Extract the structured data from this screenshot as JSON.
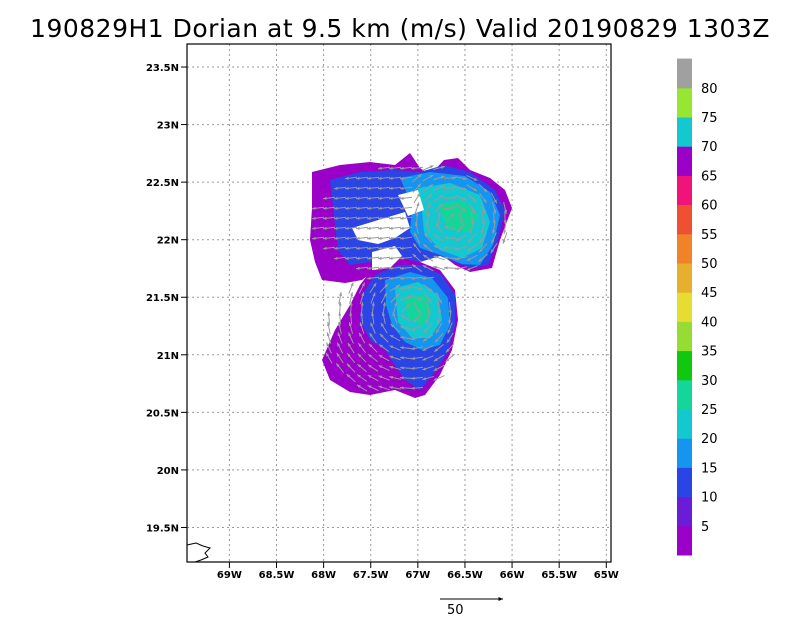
{
  "chart_data": {
    "type": "heatmap",
    "title": "190829H1 Dorian at 9.5 km (m/s) Valid 20190829 1303Z",
    "x_axis": {
      "range": [
        -69.45,
        -64.95
      ],
      "ticks": [
        -69,
        -68.5,
        -68,
        -67.5,
        -67,
        -66.5,
        -66,
        -65.5,
        -65
      ],
      "tick_labels": [
        "69W",
        "68.5W",
        "68W",
        "67.5W",
        "67W",
        "66.5W",
        "66W",
        "65.5W",
        "65W"
      ]
    },
    "y_axis": {
      "range": [
        19.2,
        23.7
      ],
      "ticks": [
        19.5,
        20,
        20.5,
        21,
        21.5,
        22,
        22.5,
        23,
        23.5
      ],
      "tick_labels": [
        "19.5N",
        "20N",
        "20.5N",
        "21N",
        "21.5N",
        "22N",
        "22.5N",
        "23N",
        "23.5N"
      ]
    },
    "grid": true,
    "colorbar": {
      "labels": [
        "5",
        "10",
        "15",
        "20",
        "25",
        "30",
        "35",
        "40",
        "45",
        "50",
        "55",
        "60",
        "65",
        "70",
        "75",
        "80"
      ],
      "colors": [
        "#9a00c8",
        "#6a1cd8",
        "#2a44e6",
        "#1496f0",
        "#14c8d0",
        "#14d69a",
        "#0fc80f",
        "#96dc32",
        "#e6dc32",
        "#e6af2d",
        "#f08228",
        "#f05032",
        "#f0147a",
        "#9a00c8",
        "#14c8d0",
        "#96e632",
        "#a0a0a0"
      ]
    },
    "reference_vector": {
      "label": "50"
    },
    "regions": [
      {
        "lon": -67.6,
        "lat": 22.3,
        "speed": 5
      },
      {
        "lon": -67.2,
        "lat": 22.35,
        "speed": 10
      },
      {
        "lon": -66.55,
        "lat": 22.15,
        "speed": 20
      },
      {
        "lon": -66.5,
        "lat": 22.2,
        "speed": 25
      },
      {
        "lon": -66.85,
        "lat": 21.4,
        "speed": 20
      },
      {
        "lon": -66.8,
        "lat": 21.45,
        "speed": 25
      },
      {
        "lon": -67.4,
        "lat": 20.95,
        "speed": 5
      },
      {
        "lon": -67.1,
        "lat": 21.1,
        "speed": 10
      }
    ]
  }
}
